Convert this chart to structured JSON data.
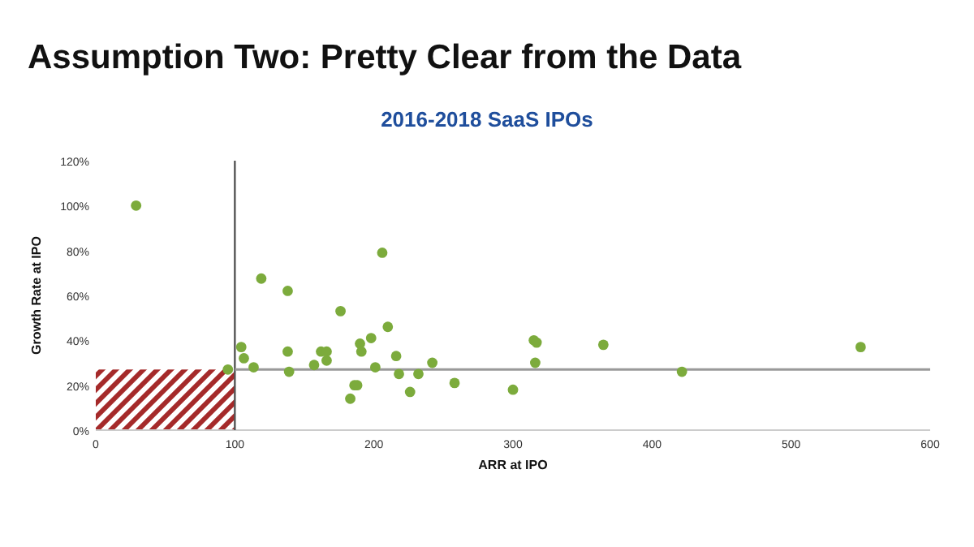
{
  "chart_data": {
    "type": "scatter",
    "title": "Assumption Two: Pretty Clear from the Data",
    "subtitle": "2016-2018 SaaS IPOs",
    "xlabel": "ARR at IPO",
    "ylabel": "Growth Rate at IPO",
    "x": [
      29,
      95,
      206,
      119,
      138,
      176,
      210,
      104.6,
      106.5,
      113.5,
      138,
      139,
      157,
      162,
      166,
      166,
      190,
      191,
      198,
      201,
      216,
      218,
      232,
      242,
      186,
      188,
      183,
      226,
      258,
      300,
      315,
      317,
      316,
      365,
      421.5,
      550
    ],
    "values": [
      100,
      27,
      79,
      67.5,
      62,
      53,
      46,
      37,
      32,
      28,
      35,
      26,
      29,
      35,
      35,
      31,
      38.5,
      35,
      41,
      28,
      33,
      25,
      25,
      30,
      20,
      20,
      14,
      17,
      21,
      18,
      40,
      39,
      30,
      38,
      26,
      37
    ],
    "color": "#7cab3c",
    "marker": "circle",
    "grid": false,
    "xlim": [
      0,
      600
    ],
    "xticks": [
      0,
      100,
      200,
      300,
      400,
      500,
      600
    ],
    "ylim": [
      0,
      120
    ],
    "yticks": [
      {
        "value": 0,
        "label": "0%"
      },
      {
        "value": 20,
        "label": "20%"
      },
      {
        "value": 40,
        "label": "40%"
      },
      {
        "value": 60,
        "label": "60%"
      },
      {
        "value": 80,
        "label": "80%"
      },
      {
        "value": 100,
        "label": "100%"
      },
      {
        "value": 120,
        "label": "120%"
      }
    ],
    "bands": [
      {
        "axis": "x",
        "from": 0,
        "to": 100,
        "color": "#a52a2a"
      }
    ],
    "ref_lines": [
      {
        "axis": "x",
        "value": 100,
        "color": "#555555"
      },
      {
        "axis": "y",
        "value": 27,
        "color": "#999999"
      }
    ]
  }
}
